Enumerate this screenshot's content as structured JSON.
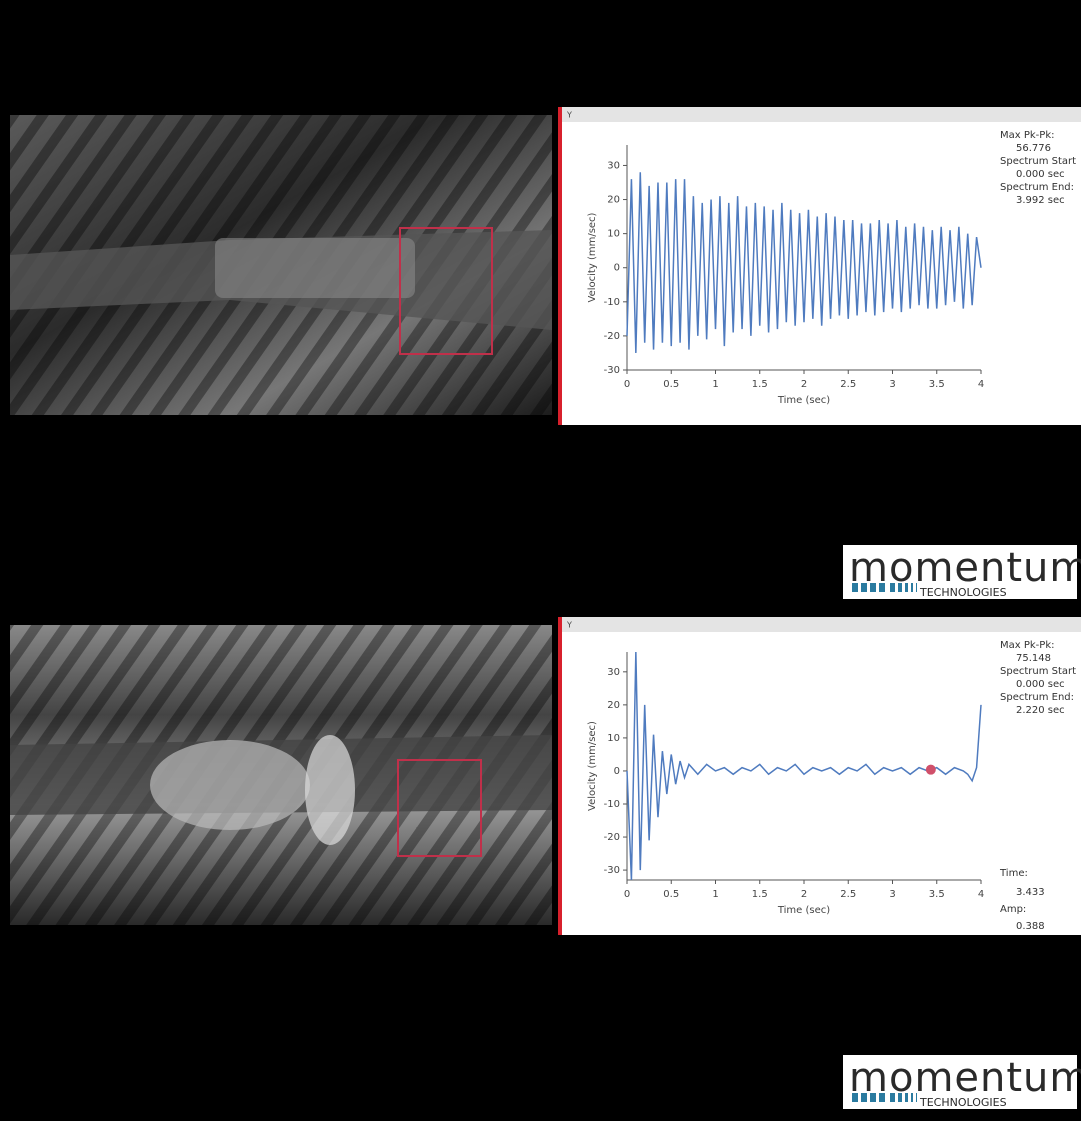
{
  "chart_data": [
    {
      "type": "line",
      "panel_label": "Y",
      "x_label": "Time (sec)",
      "y_label": "Velocity (mm/sec)",
      "xlim": [
        0,
        4
      ],
      "ylim": [
        -30,
        36
      ],
      "xticks": [
        0,
        0.5,
        1,
        1.5,
        2,
        2.5,
        3,
        3.5,
        4
      ],
      "yticks": [
        -30,
        -20,
        -10,
        0,
        10,
        20,
        30
      ],
      "x": [
        0,
        0.05,
        0.1,
        0.15,
        0.2,
        0.25,
        0.3,
        0.35,
        0.4,
        0.45,
        0.5,
        0.55,
        0.6,
        0.65,
        0.7,
        0.75,
        0.8,
        0.85,
        0.9,
        0.95,
        1,
        1.05,
        1.1,
        1.15,
        1.2,
        1.25,
        1.3,
        1.35,
        1.4,
        1.45,
        1.5,
        1.55,
        1.6,
        1.65,
        1.7,
        1.75,
        1.8,
        1.85,
        1.9,
        1.95,
        2,
        2.05,
        2.1,
        2.15,
        2.2,
        2.25,
        2.3,
        2.35,
        2.4,
        2.45,
        2.5,
        2.55,
        2.6,
        2.65,
        2.7,
        2.75,
        2.8,
        2.85,
        2.9,
        2.95,
        3,
        3.05,
        3.1,
        3.15,
        3.2,
        3.25,
        3.3,
        3.35,
        3.4,
        3.45,
        3.5,
        3.55,
        3.6,
        3.65,
        3.7,
        3.75,
        3.8,
        3.85,
        3.9,
        3.95,
        4
      ],
      "series": [
        {
          "color": "#4f7bbf",
          "values": [
            -20,
            26,
            -25,
            28,
            -22,
            24,
            -24,
            25,
            -22,
            25,
            -23,
            26,
            -22,
            26,
            -24,
            21,
            -20,
            19,
            -21,
            20,
            -18,
            21,
            -23,
            19,
            -19,
            21,
            -18,
            18,
            -20,
            19,
            -17,
            18,
            -19,
            17,
            -18,
            19,
            -16,
            17,
            -17,
            16,
            -16,
            17,
            -15,
            15,
            -17,
            16,
            -15,
            15,
            -14,
            14,
            -15,
            14,
            -14,
            13,
            -13,
            13,
            -14,
            14,
            -13,
            13,
            -12,
            14,
            -13,
            12,
            -12,
            13,
            -11,
            12,
            -12,
            11,
            -12,
            12,
            -11,
            11,
            -10,
            12,
            -12,
            10,
            -11,
            9,
            0
          ]
        }
      ]
    },
    {
      "type": "line",
      "panel_label": "Y",
      "x_label": "Time (sec)",
      "y_label": "Velocity (mm/sec)",
      "xlim": [
        0,
        4
      ],
      "ylim": [
        -33,
        36
      ],
      "xticks": [
        0,
        0.5,
        1,
        1.5,
        2,
        2.5,
        3,
        3.5,
        4
      ],
      "yticks": [
        -30,
        -20,
        -10,
        0,
        10,
        20,
        30
      ],
      "x": [
        0,
        0.05,
        0.1,
        0.15,
        0.2,
        0.25,
        0.3,
        0.35,
        0.4,
        0.45,
        0.5,
        0.55,
        0.6,
        0.65,
        0.7,
        0.8,
        0.9,
        1,
        1.1,
        1.2,
        1.3,
        1.4,
        1.5,
        1.6,
        1.7,
        1.8,
        1.9,
        2,
        2.1,
        2.2,
        2.3,
        2.4,
        2.5,
        2.6,
        2.7,
        2.8,
        2.9,
        3,
        3.1,
        3.2,
        3.3,
        3.4,
        3.5,
        3.6,
        3.7,
        3.8,
        3.85,
        3.9,
        3.95,
        4
      ],
      "series": [
        {
          "color": "#4f7bbf",
          "values": [
            0,
            -33,
            36,
            -30,
            20,
            -21,
            11,
            -14,
            6,
            -7,
            5,
            -4,
            3,
            -2,
            2,
            -1,
            2,
            0,
            1,
            -1,
            1,
            0,
            2,
            -1,
            1,
            0,
            2,
            -1,
            1,
            0,
            1,
            -1,
            1,
            0,
            2,
            -1,
            1,
            0,
            1,
            -1,
            1,
            0,
            1,
            -1,
            1,
            0,
            -1,
            -3,
            1,
            20
          ]
        }
      ],
      "cursor": {
        "x": 3.433,
        "y": 0.388,
        "color": "#d0506a"
      }
    }
  ],
  "panels": [
    {
      "stats": [
        {
          "label": "Max Pk-Pk:",
          "value": "56.776"
        },
        {
          "label": "Spectrum Start",
          "value": "0.000 sec"
        },
        {
          "label": "Spectrum End:",
          "value": "3.992 sec"
        }
      ]
    },
    {
      "stats": [
        {
          "label": "Max Pk-Pk:",
          "value": "75.148"
        },
        {
          "label": "Spectrum Start",
          "value": "0.000 sec"
        },
        {
          "label": "Spectrum End:",
          "value": "2.220 sec"
        }
      ],
      "cursor_labels": {
        "time": "Time:",
        "amp": "Amp:"
      }
    }
  ],
  "logos": [
    {
      "name": "momentum",
      "sub": "TECHNOLOGIES"
    },
    {
      "name": "momentum",
      "sub": "TECHNOLOGIES"
    }
  ]
}
